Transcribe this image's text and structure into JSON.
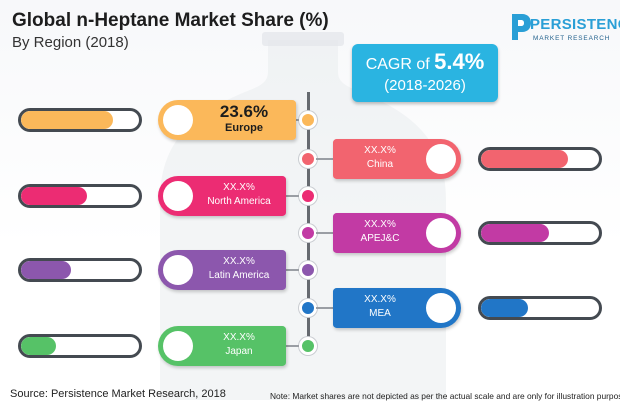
{
  "header": {
    "title": "Global n-Heptane Market Share (%)",
    "subtitle": "By Region (2018)"
  },
  "logo": {
    "name": "PERSISTENCE",
    "tagline": "MARKET RESEARCH"
  },
  "cagr": {
    "prefix": "CAGR of ",
    "value": "5.4%",
    "period": "(2018-2026)"
  },
  "chart_data": {
    "type": "bar",
    "title": "Global n-Heptane Market Share (%)",
    "subtitle": "By Region (2018)",
    "categories": [
      "Europe",
      "China",
      "North America",
      "APEJ&C",
      "Latin America",
      "MEA",
      "Japan"
    ],
    "value_labels": [
      "23.6%",
      "XX.X%",
      "XX.X%",
      "XX.X%",
      "XX.X%",
      "XX.X%",
      "XX.X%"
    ],
    "values": [
      23.6,
      null,
      null,
      null,
      null,
      null,
      null
    ],
    "bar_fill_fraction": [
      0.78,
      0.74,
      0.56,
      0.58,
      0.42,
      0.4,
      0.3
    ],
    "colors": [
      "#fbb85a",
      "#f2646f",
      "#ec2c73",
      "#c23aa4",
      "#8c57ad",
      "#2176c7",
      "#56c267"
    ]
  },
  "footer": {
    "source": "Source: Persistence Market Research, 2018",
    "note": "Note: Market shares are not depicted as per the actual scale and are only for illustration purposes."
  }
}
